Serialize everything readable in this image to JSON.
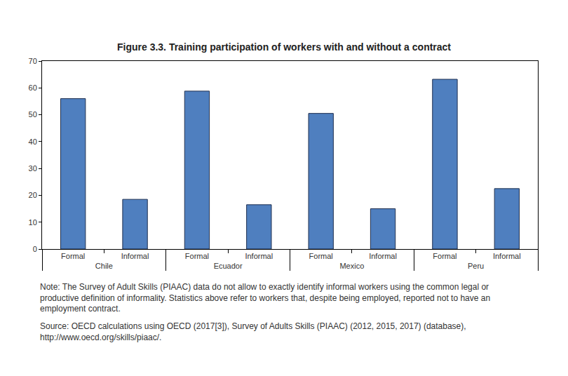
{
  "chart_data": {
    "type": "bar",
    "title": "Figure 3.3. Training participation of workers with and without a contract",
    "category_groups": [
      "Chile",
      "Chile",
      "Ecuador",
      "Ecuador",
      "Mexico",
      "Mexico",
      "Peru",
      "Peru"
    ],
    "categories": [
      "Formal",
      "Informal",
      "Formal",
      "Informal",
      "Formal",
      "Informal",
      "Formal",
      "Informal"
    ],
    "values": [
      56,
      18.5,
      58.8,
      16.5,
      50.5,
      15,
      63.2,
      22.5
    ],
    "color": "#4f7fbf",
    "ylim": [
      0,
      70
    ],
    "yticks": [
      0,
      10,
      20,
      30,
      40,
      50,
      60,
      70
    ],
    "grid": false,
    "note": [
      "Note: The Survey of Adult Skills (PIAAC) data do not allow to exactly identify informal workers using the common legal or",
      "productive definition of informality. Statistics above refer to workers that, despite being employed, reported not to have an",
      "employment contract."
    ],
    "source": [
      "Source: OECD calculations using OECD (2017[3]), Survey of Adults Skills (PIAAC) (2012, 2015, 2017) (database),",
      "http://www.oecd.org/skills/piaac/."
    ]
  }
}
